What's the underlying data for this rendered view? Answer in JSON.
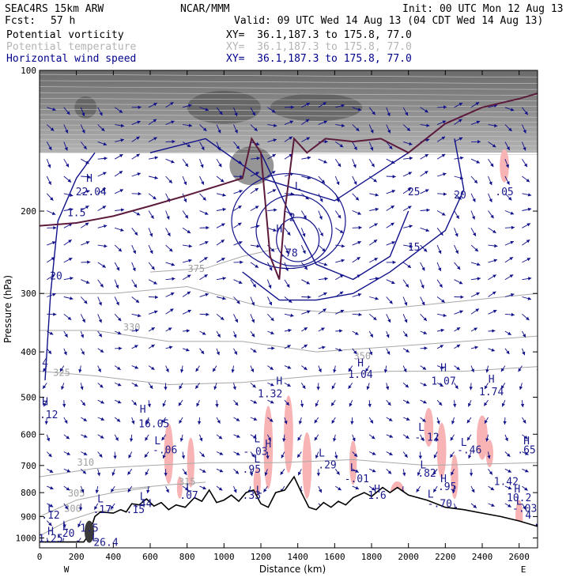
{
  "header": {
    "model": "SEAC4RS 15km ARW",
    "org": "NCAR/MMM",
    "init": "Init: 00 UTC Mon 12 Aug 13",
    "fcst_label": "Fcst:",
    "fcst_value": "57 h",
    "valid": "Valid: 09 UTC Wed 14 Aug 13 (04 CDT Wed 14 Aug 13)"
  },
  "fields": [
    {
      "name": "Potential vorticity",
      "xy": "XY=  36.1,187.3 to 175.8, 77.0",
      "color": "#000000"
    },
    {
      "name": "Potential temperature",
      "xy": "XY=  36.1,187.3 to 175.8, 77.0",
      "color": "#b4b4b4"
    },
    {
      "name": "Horizontal wind speed",
      "xy": "XY=  36.1,187.3 to 175.8, 77.0",
      "color": "#00008b"
    }
  ],
  "colors": {
    "wind": "#10108a",
    "theta": "#a8a8a8",
    "pv_fill": "#505050",
    "red_fill": "#f8b4b4",
    "tropopause": "#5c1a3c",
    "terrain": "#000000"
  },
  "chart_data": {
    "type": "cross-section",
    "xlabel": "Distance (km)",
    "ylabel": "Pressure (hPa)",
    "xlim": [
      0,
      2700
    ],
    "ylim": [
      1050,
      100
    ],
    "y_scale": "log",
    "x_ticks": [
      0,
      200,
      400,
      600,
      800,
      1000,
      1200,
      1400,
      1600,
      1800,
      2000,
      2200,
      2400,
      2600
    ],
    "y_ticks": [
      100,
      200,
      300,
      400,
      500,
      600,
      700,
      800,
      900,
      1000
    ],
    "x_end_labels": {
      "left": "W",
      "right": "E"
    },
    "terrain": [
      {
        "x": 0,
        "p": 1020
      },
      {
        "x": 240,
        "p": 1020
      },
      {
        "x": 270,
        "p": 980
      },
      {
        "x": 300,
        "p": 900
      },
      {
        "x": 330,
        "p": 880
      },
      {
        "x": 400,
        "p": 885
      },
      {
        "x": 440,
        "p": 870
      },
      {
        "x": 470,
        "p": 880
      },
      {
        "x": 500,
        "p": 845
      },
      {
        "x": 540,
        "p": 850
      },
      {
        "x": 580,
        "p": 825
      },
      {
        "x": 620,
        "p": 855
      },
      {
        "x": 660,
        "p": 840
      },
      {
        "x": 700,
        "p": 870
      },
      {
        "x": 740,
        "p": 850
      },
      {
        "x": 790,
        "p": 860
      },
      {
        "x": 840,
        "p": 820
      },
      {
        "x": 880,
        "p": 835
      },
      {
        "x": 920,
        "p": 790
      },
      {
        "x": 960,
        "p": 840
      },
      {
        "x": 1000,
        "p": 830
      },
      {
        "x": 1040,
        "p": 810
      },
      {
        "x": 1080,
        "p": 835
      },
      {
        "x": 1120,
        "p": 800
      },
      {
        "x": 1160,
        "p": 790
      },
      {
        "x": 1200,
        "p": 845
      },
      {
        "x": 1240,
        "p": 860
      },
      {
        "x": 1280,
        "p": 800
      },
      {
        "x": 1330,
        "p": 790
      },
      {
        "x": 1380,
        "p": 740
      },
      {
        "x": 1420,
        "p": 800
      },
      {
        "x": 1460,
        "p": 860
      },
      {
        "x": 1500,
        "p": 870
      },
      {
        "x": 1540,
        "p": 840
      },
      {
        "x": 1580,
        "p": 860
      },
      {
        "x": 1620,
        "p": 835
      },
      {
        "x": 1660,
        "p": 850
      },
      {
        "x": 1700,
        "p": 820
      },
      {
        "x": 1760,
        "p": 800
      },
      {
        "x": 1800,
        "p": 815
      },
      {
        "x": 1860,
        "p": 780
      },
      {
        "x": 1900,
        "p": 800
      },
      {
        "x": 1940,
        "p": 780
      },
      {
        "x": 2000,
        "p": 810
      },
      {
        "x": 2100,
        "p": 830
      },
      {
        "x": 2200,
        "p": 860
      },
      {
        "x": 2300,
        "p": 870
      },
      {
        "x": 2400,
        "p": 885
      },
      {
        "x": 2500,
        "p": 900
      },
      {
        "x": 2600,
        "p": 920
      },
      {
        "x": 2700,
        "p": 945
      }
    ],
    "tropopause": [
      {
        "x": 0,
        "p": 215
      },
      {
        "x": 200,
        "p": 212
      },
      {
        "x": 400,
        "p": 205
      },
      {
        "x": 600,
        "p": 195
      },
      {
        "x": 800,
        "p": 185
      },
      {
        "x": 1000,
        "p": 175
      },
      {
        "x": 1100,
        "p": 170
      },
      {
        "x": 1150,
        "p": 140
      },
      {
        "x": 1200,
        "p": 150
      },
      {
        "x": 1250,
        "p": 250
      },
      {
        "x": 1300,
        "p": 280
      },
      {
        "x": 1330,
        "p": 200
      },
      {
        "x": 1380,
        "p": 140
      },
      {
        "x": 1450,
        "p": 150
      },
      {
        "x": 1550,
        "p": 140
      },
      {
        "x": 1700,
        "p": 142
      },
      {
        "x": 1850,
        "p": 140
      },
      {
        "x": 2000,
        "p": 150
      },
      {
        "x": 2200,
        "p": 130
      },
      {
        "x": 2400,
        "p": 120
      },
      {
        "x": 2600,
        "p": 115
      },
      {
        "x": 2700,
        "p": 112
      }
    ],
    "theta_contours": [
      {
        "label": "300",
        "points": [
          {
            "x": 0,
            "p": 990
          },
          {
            "x": 150,
            "p": 920
          },
          {
            "x": 300,
            "p": 880
          },
          {
            "x": 400,
            "p": 870
          }
        ],
        "label_at": {
          "x": 180,
          "p": 880
        }
      },
      {
        "label": "305",
        "points": [
          {
            "x": 0,
            "p": 900
          },
          {
            "x": 200,
            "p": 830
          },
          {
            "x": 400,
            "p": 800
          },
          {
            "x": 600,
            "p": 780
          }
        ],
        "label_at": {
          "x": 200,
          "p": 815
        }
      },
      {
        "x": 0,
        "label": "310",
        "points": [
          {
            "x": 0,
            "p": 740
          },
          {
            "x": 300,
            "p": 710
          },
          {
            "x": 600,
            "p": 700
          },
          {
            "x": 900,
            "p": 690
          },
          {
            "x": 1300,
            "p": 690
          },
          {
            "x": 1700,
            "p": 680
          },
          {
            "x": 2100,
            "p": 700
          },
          {
            "x": 2700,
            "p": 690
          }
        ],
        "label_at": {
          "x": 250,
          "p": 700
        }
      },
      {
        "label": "315",
        "points": [
          {
            "x": 400,
            "p": 790
          },
          {
            "x": 700,
            "p": 770
          },
          {
            "x": 900,
            "p": 760
          }
        ],
        "label_at": {
          "x": 800,
          "p": 770
        }
      },
      {
        "label": "325",
        "points": [
          {
            "x": 0,
            "p": 440
          },
          {
            "x": 300,
            "p": 450
          },
          {
            "x": 700,
            "p": 470
          },
          {
            "x": 1100,
            "p": 465
          },
          {
            "x": 1500,
            "p": 450
          },
          {
            "x": 1900,
            "p": 440
          },
          {
            "x": 2300,
            "p": 440
          },
          {
            "x": 2700,
            "p": 430
          }
        ],
        "label_at": {
          "x": 120,
          "p": 450
        }
      },
      {
        "label": "330",
        "points": [
          {
            "x": 0,
            "p": 360
          },
          {
            "x": 300,
            "p": 360
          },
          {
            "x": 700,
            "p": 380
          },
          {
            "x": 1100,
            "p": 380
          },
          {
            "x": 1500,
            "p": 400
          },
          {
            "x": 1900,
            "p": 390
          },
          {
            "x": 2300,
            "p": 380
          },
          {
            "x": 2700,
            "p": 370
          }
        ],
        "label_at": {
          "x": 500,
          "p": 360
        }
      },
      {
        "label": "350",
        "points": [
          {
            "x": 0,
            "p": 300
          },
          {
            "x": 400,
            "p": 300
          },
          {
            "x": 800,
            "p": 290
          },
          {
            "x": 1200,
            "p": 320
          },
          {
            "x": 1600,
            "p": 330
          },
          {
            "x": 2000,
            "p": 320
          },
          {
            "x": 2700,
            "p": 300
          }
        ],
        "label_at": {
          "x": 1750,
          "p": 415
        }
      },
      {
        "label": "375",
        "points": [
          {
            "x": 600,
            "p": 270
          },
          {
            "x": 900,
            "p": 265
          },
          {
            "x": 1100,
            "p": 250
          },
          {
            "x": 1300,
            "p": 240
          }
        ],
        "label_at": {
          "x": 850,
          "p": 270
        }
      }
    ],
    "wind_contours": [
      {
        "label": "20",
        "points": [
          {
            "x": 30,
            "p": 460
          },
          {
            "x": 60,
            "p": 300
          },
          {
            "x": 100,
            "p": 210
          },
          {
            "x": 200,
            "p": 170
          },
          {
            "x": 300,
            "p": 150
          }
        ]
      },
      {
        "label": "25",
        "points": [
          {
            "x": 600,
            "p": 150
          },
          {
            "x": 900,
            "p": 140
          },
          {
            "x": 1200,
            "p": 170
          },
          {
            "x": 1600,
            "p": 190
          },
          {
            "x": 2000,
            "p": 150
          },
          {
            "x": 2200,
            "p": 130
          }
        ]
      },
      {
        "label": "15",
        "points": [
          {
            "x": 1100,
            "p": 270
          },
          {
            "x": 1300,
            "p": 310
          },
          {
            "x": 1500,
            "p": 310
          },
          {
            "x": 1700,
            "p": 300
          },
          {
            "x": 1900,
            "p": 270
          },
          {
            "x": 2200,
            "p": 220
          },
          {
            "x": 2300,
            "p": 180
          },
          {
            "x": 2250,
            "p": 140
          }
        ]
      },
      {
        "label": "",
        "points": [
          {
            "x": 1200,
            "p": 150
          },
          {
            "x": 1350,
            "p": 200
          },
          {
            "x": 1500,
            "p": 260
          },
          {
            "x": 1700,
            "p": 280
          },
          {
            "x": 1900,
            "p": 250
          },
          {
            "x": 2000,
            "p": 200
          }
        ]
      }
    ],
    "annotations": [
      {
        "text": "H",
        "x": 270,
        "p": 173
      },
      {
        "text": "22.04",
        "x": 280,
        "p": 185
      },
      {
        "text": "1.5",
        "x": 200,
        "p": 205
      },
      {
        "text": "20",
        "x": 90,
        "p": 280
      },
      {
        "text": "20",
        "x": 2280,
        "p": 188
      },
      {
        "text": "25",
        "x": 2030,
        "p": 185
      },
      {
        "text": "15",
        "x": 2030,
        "p": 243
      },
      {
        "text": ".05",
        "x": 2520,
        "p": 185
      },
      {
        "text": "L",
        "x": 1400,
        "p": 180
      },
      {
        "text": "H",
        "x": 1300,
        "p": 222
      },
      {
        "text": ".78",
        "x": 1350,
        "p": 250
      },
      {
        "text": "2",
        "x": 1370,
        "p": 210
      },
      {
        "text": "4",
        "x": 30,
        "p": 430
      },
      {
        "text": "H",
        "x": 1300,
        "p": 470
      },
      {
        "text": "1.32",
        "x": 1250,
        "p": 500
      },
      {
        "text": "H",
        "x": 1740,
        "p": 430
      },
      {
        "text": "1.04",
        "x": 1740,
        "p": 455
      },
      {
        "text": "H",
        "x": 2190,
        "p": 440
      },
      {
        "text": "1.07",
        "x": 2190,
        "p": 470
      },
      {
        "text": "H",
        "x": 2450,
        "p": 465
      },
      {
        "text": "1.74",
        "x": 2450,
        "p": 495
      },
      {
        "text": "H",
        "x": 30,
        "p": 520
      },
      {
        "text": ".12",
        "x": 50,
        "p": 555
      },
      {
        "text": "H",
        "x": 560,
        "p": 540
      },
      {
        "text": "16.05",
        "x": 620,
        "p": 580
      },
      {
        "text": "L",
        "x": 640,
        "p": 630
      },
      {
        "text": "-.06",
        "x": 680,
        "p": 660
      },
      {
        "text": "L",
        "x": 1180,
        "p": 625
      },
      {
        "text": "-.03",
        "x": 1170,
        "p": 665
      },
      {
        "text": "H",
        "x": 1240,
        "p": 640
      },
      {
        "text": "L",
        "x": 1530,
        "p": 670
      },
      {
        "text": ".29",
        "x": 1560,
        "p": 710
      },
      {
        "text": "L",
        "x": 2070,
        "p": 590
      },
      {
        "text": "-.12",
        "x": 2100,
        "p": 620
      },
      {
        "text": "L",
        "x": 2300,
        "p": 635
      },
      {
        "text": "-.46",
        "x": 2330,
        "p": 660
      },
      {
        "text": "H",
        "x": 2640,
        "p": 630
      },
      {
        "text": ".65",
        "x": 2640,
        "p": 660
      },
      {
        "text": "L",
        "x": 1180,
        "p": 690
      },
      {
        "text": ".95",
        "x": 1150,
        "p": 725
      },
      {
        "text": "L",
        "x": 1700,
        "p": 720
      },
      {
        "text": "-.01",
        "x": 1720,
        "p": 760
      },
      {
        "text": "L",
        "x": 2080,
        "p": 710
      },
      {
        "text": ".82",
        "x": 2100,
        "p": 740
      },
      {
        "text": "H",
        "x": 2190,
        "p": 760
      },
      {
        "text": ".95",
        "x": 2210,
        "p": 790
      },
      {
        "text": "1.42",
        "x": 2530,
        "p": 770
      },
      {
        "text": "H",
        "x": 2590,
        "p": 800
      },
      {
        "text": "10.2",
        "x": 2600,
        "p": 835
      },
      {
        "text": "L",
        "x": 810,
        "p": 795
      },
      {
        "text": ".07",
        "x": 810,
        "p": 825
      },
      {
        "text": "H",
        "x": 1830,
        "p": 800
      },
      {
        "text": "1.6",
        "x": 1830,
        "p": 825
      },
      {
        "text": "L",
        "x": 1190,
        "p": 805
      },
      {
        "text": ".33",
        "x": 1150,
        "p": 825
      },
      {
        "text": "L",
        "x": 2120,
        "p": 820
      },
      {
        "text": "-.70",
        "x": 2170,
        "p": 860
      },
      {
        "text": "L",
        "x": 2600,
        "p": 850
      },
      {
        "text": "-.03",
        "x": 2630,
        "p": 880
      },
      {
        "text": "4",
        "x": 2650,
        "p": 910
      },
      {
        "text": "L",
        "x": 560,
        "p": 830
      },
      {
        "text": ".44",
        "x": 560,
        "p": 860
      },
      {
        "text": ".15",
        "x": 520,
        "p": 885
      },
      {
        "text": "L",
        "x": 330,
        "p": 840
      },
      {
        "text": ".17",
        "x": 340,
        "p": 885
      },
      {
        "text": "L",
        "x": 60,
        "p": 880
      },
      {
        "text": ".12",
        "x": 60,
        "p": 910
      },
      {
        "text": "L",
        "x": 140,
        "p": 960
      },
      {
        "text": ".20",
        "x": 140,
        "p": 995
      },
      {
        "text": "1.5",
        "x": 270,
        "p": 970
      },
      {
        "text": "H",
        "x": 60,
        "p": 985
      },
      {
        "text": "1.25",
        "x": 60,
        "p": 1020
      },
      {
        "text": "26.4",
        "x": 360,
        "p": 1040
      },
      {
        "text": "L",
        "x": 300,
        "p": 1015
      }
    ]
  }
}
